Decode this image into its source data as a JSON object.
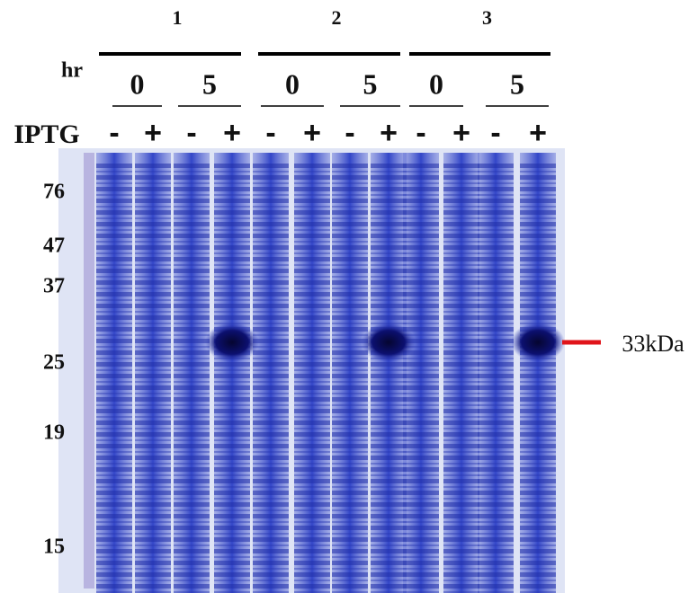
{
  "header": {
    "groups": [
      "1",
      "2",
      "3"
    ],
    "hr_label": "hr",
    "hours": [
      "0",
      "5",
      "0",
      "5",
      "0",
      "5"
    ],
    "iptg_label": "IPTG",
    "iptg": [
      "-",
      "+",
      "-",
      "+",
      "-",
      "+",
      "-",
      "+",
      "-",
      "+",
      "-",
      "+"
    ]
  },
  "ladder": {
    "markers": [
      "76",
      "47",
      "37",
      "25",
      "19",
      "15"
    ]
  },
  "annotation": "33kDa"
}
